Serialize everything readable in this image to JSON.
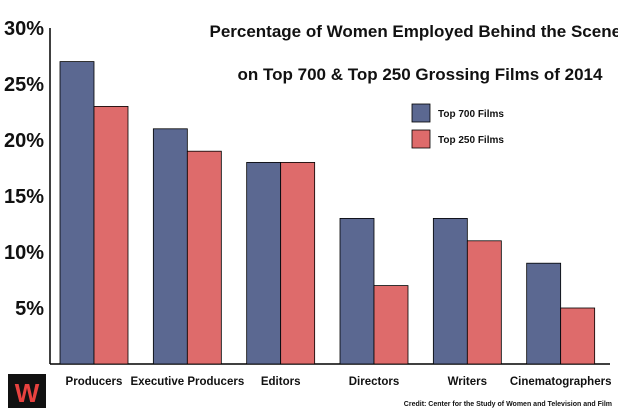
{
  "chart_data": {
    "type": "bar",
    "title_lines": [
      "Percentage of Women Employed Behind the Scenes",
      "on Top 700 & Top 250 Grossing Films of 2014"
    ],
    "categories": [
      "Producers",
      "Executive Producers",
      "Editors",
      "Directors",
      "Writers",
      "Cinematographers"
    ],
    "series": [
      {
        "name": "Top 700 Films",
        "color": "#5b6891",
        "values": [
          27,
          21,
          18,
          13,
          13,
          9
        ]
      },
      {
        "name": "Top 250 Films",
        "color": "#de6b6b",
        "values": [
          23,
          19,
          18,
          7,
          11,
          5
        ]
      }
    ],
    "y_ticks": [
      5,
      10,
      15,
      20,
      25,
      30
    ],
    "y_tick_labels": [
      "5%",
      "10%",
      "15%",
      "20%",
      "25%",
      "30%"
    ],
    "ylim": [
      0,
      30
    ],
    "grid": false,
    "legend_position": "top-right",
    "credit": "Credit: Center for the Study of Women and Television and Film",
    "logo": {
      "letter": "W",
      "bg_color": "#111111",
      "fg_color": "#e8423f"
    }
  }
}
